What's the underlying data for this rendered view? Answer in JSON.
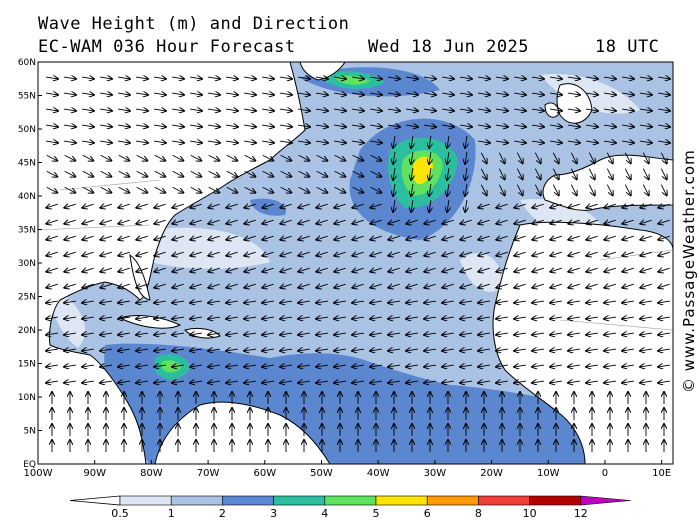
{
  "header": {
    "line1": "Wave Height (m) and Direction",
    "line2_left": "EC-WAM 036 Hour Forecast",
    "line2_mid": "Wed 18 Jun 2025",
    "line2_right": "18 UTC"
  },
  "credit": "© www.PassageWeather.com",
  "axes": {
    "lat_labels": [
      "60N",
      "55N",
      "50N",
      "45N",
      "40N",
      "35N",
      "30N",
      "25N",
      "20N",
      "15N",
      "10N",
      "5N",
      "EQ"
    ],
    "lon_labels": [
      "100W",
      "90W",
      "80W",
      "70W",
      "60W",
      "50W",
      "40W",
      "30W",
      "20W",
      "10W",
      "0",
      "10E"
    ],
    "lat_range": [
      0,
      60
    ],
    "lon_range": [
      -100,
      12
    ]
  },
  "colorbar": {
    "labels": [
      "0.5",
      "1",
      "2",
      "3",
      "4",
      "5",
      "6",
      "8",
      "10",
      "12"
    ],
    "colors": [
      "#dde6f2",
      "#aac2e4",
      "#5a87cf",
      "#2bbfa0",
      "#5fe25f",
      "#ffe400",
      "#ff9a00",
      "#ef3f37",
      "#b30000",
      "#c000c0"
    ]
  },
  "colors": {
    "land": "#ffffff",
    "sea_low": "#dde6f2",
    "sea_1_2": "#aac2e4",
    "sea_2_3": "#5a87cf",
    "sea_3_4": "#2bbfa0",
    "sea_4_5": "#5fe25f",
    "sea_5_6": "#ffe400"
  }
}
